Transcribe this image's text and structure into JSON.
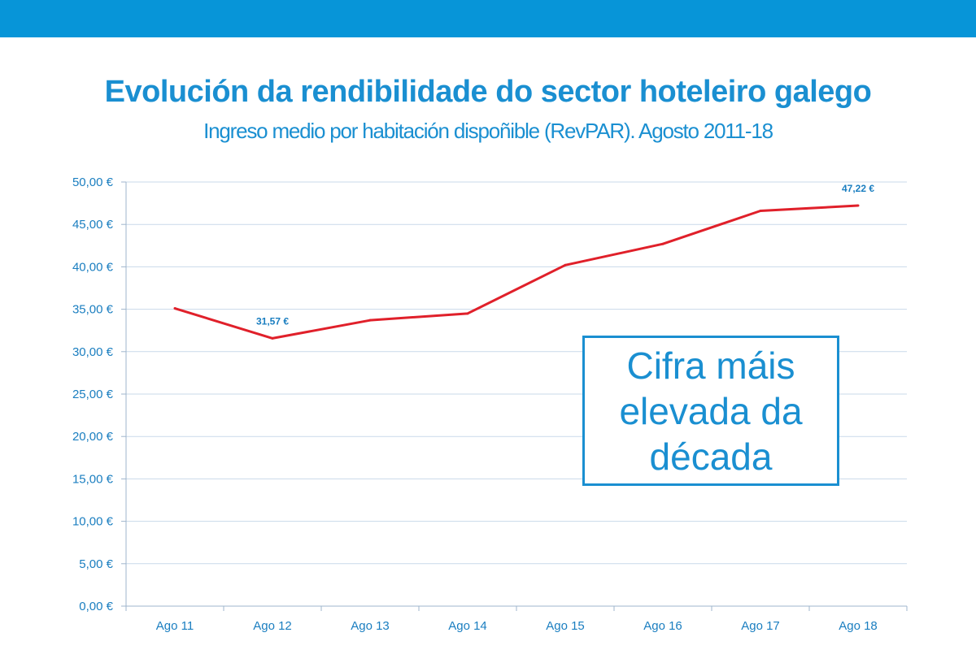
{
  "header": {
    "title": "Evolución da rendibilidade do sector hoteleiro galego",
    "subtitle": "Ingreso medio por habitación dispoñible (RevPAR). Agosto 2011-18"
  },
  "callout": {
    "text": "Cifra máis elevada da década"
  },
  "colors": {
    "bar": "#0795d8",
    "line": "#e0202a",
    "grid": "#c9d9ea",
    "text": "#1a8fd1"
  },
  "chart_data": {
    "type": "line",
    "title": "",
    "xlabel": "",
    "ylabel": "",
    "categories": [
      "Ago 11",
      "Ago 12",
      "Ago 13",
      "Ago 14",
      "Ago 15",
      "Ago 16",
      "Ago 17",
      "Ago 18"
    ],
    "series": [
      {
        "values": [
          35.1,
          31.57,
          33.7,
          34.5,
          40.2,
          42.7,
          46.6,
          47.22
        ]
      }
    ],
    "ylim": [
      0,
      50
    ],
    "yticks": [
      0,
      5,
      10,
      15,
      20,
      25,
      30,
      35,
      40,
      45,
      50
    ],
    "ytick_labels": [
      "0,00 €",
      "5,00 €",
      "10,00 €",
      "15,00 €",
      "20,00 €",
      "25,00 €",
      "30,00 €",
      "35,00 €",
      "40,00 €",
      "45,00 €",
      "50,00 €"
    ],
    "data_labels": [
      {
        "index": 1,
        "text": "31,57 €"
      },
      {
        "index": 7,
        "text": "47,22 €"
      }
    ],
    "grid": true,
    "legend": "none"
  }
}
